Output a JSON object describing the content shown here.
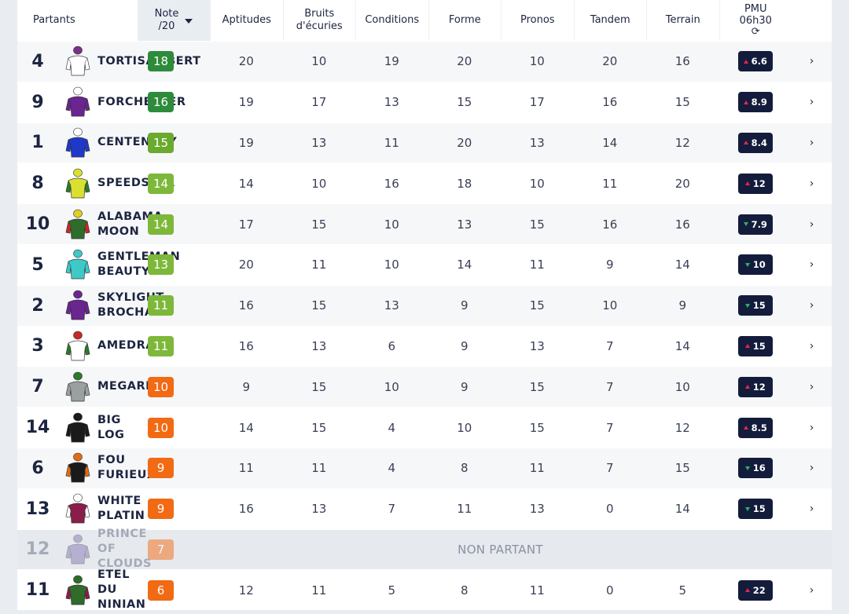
{
  "header": {
    "partants": "Partants",
    "note": "Note\n/20",
    "columns": [
      "Aptitudes",
      "Bruits\nd'écuries",
      "Conditions",
      "Forme",
      "Pronos",
      "Tandem",
      "Terrain"
    ],
    "pmu": "PMU\n06h30",
    "refresh_icon": "refresh-icon"
  },
  "colors": {
    "note_dark_green": "#2e8b3b",
    "note_green": "#6aaa2e",
    "note_light_green": "#7db83a",
    "note_orange": "#f26a14",
    "pmu_bg": "#141c3c",
    "trend_up": "#e4264e",
    "trend_down": "#27b46a"
  },
  "runners": [
    {
      "num": "4",
      "name": "TORTISAMBERT",
      "note": "18",
      "note_color": "#2e8b3b",
      "vals": [
        "20",
        "10",
        "19",
        "20",
        "10",
        "20",
        "16"
      ],
      "pmu": "6.6",
      "trend": "up",
      "silk": {
        "body": "#ffffff",
        "cap": "#7a2f8a",
        "sleeves": "#ffffff"
      }
    },
    {
      "num": "9",
      "name": "FORCHESTER",
      "note": "16",
      "note_color": "#2e8b3b",
      "vals": [
        "19",
        "17",
        "13",
        "15",
        "17",
        "16",
        "15"
      ],
      "pmu": "8.9",
      "trend": "up",
      "silk": {
        "body": "#6a2590",
        "cap": "#ffffff",
        "sleeves": "#6a2590"
      }
    },
    {
      "num": "1",
      "name": "CENTENARY",
      "note": "15",
      "note_color": "#6aaa2e",
      "vals": [
        "19",
        "13",
        "11",
        "20",
        "13",
        "14",
        "12"
      ],
      "pmu": "8.4",
      "trend": "up",
      "silk": {
        "body": "#2038c8",
        "cap": "#ffffff",
        "sleeves": "#2038c8"
      }
    },
    {
      "num": "8",
      "name": "SPEEDSTER",
      "note": "14",
      "note_color": "#7db83a",
      "vals": [
        "14",
        "10",
        "16",
        "18",
        "10",
        "11",
        "20"
      ],
      "pmu": "12",
      "trend": "up",
      "silk": {
        "body": "#d9e030",
        "cap": "#d9e030",
        "sleeves": "#2b7a2a"
      }
    },
    {
      "num": "10",
      "name": "ALABAMA\nMOON",
      "note": "14",
      "note_color": "#7db83a",
      "vals": [
        "17",
        "15",
        "10",
        "13",
        "15",
        "16",
        "16"
      ],
      "pmu": "7.9",
      "trend": "down",
      "silk": {
        "body": "#2f6b2b",
        "cap": "#e0d020",
        "sleeves": "#c72828"
      }
    },
    {
      "num": "5",
      "name": "GENTLEMAN\nBEAUTY",
      "note": "13",
      "note_color": "#7db83a",
      "vals": [
        "20",
        "11",
        "10",
        "14",
        "11",
        "9",
        "14"
      ],
      "pmu": "10",
      "trend": "down",
      "silk": {
        "body": "#3fc8c8",
        "cap": "#3fc8c8",
        "sleeves": "#3fc8c8"
      }
    },
    {
      "num": "2",
      "name": "SKYLIGHT\nBROCHARD",
      "note": "11",
      "note_color": "#7db83a",
      "vals": [
        "16",
        "15",
        "13",
        "9",
        "15",
        "10",
        "9"
      ],
      "pmu": "15",
      "trend": "down",
      "silk": {
        "body": "#6a2590",
        "cap": "#6a2590",
        "sleeves": "#6a2590"
      }
    },
    {
      "num": "3",
      "name": "AMEDRAS",
      "note": "11",
      "note_color": "#7db83a",
      "vals": [
        "16",
        "13",
        "6",
        "9",
        "13",
        "7",
        "14"
      ],
      "pmu": "15",
      "trend": "up",
      "silk": {
        "body": "#ffffff",
        "cap": "#c72828",
        "sleeves": "#2b7a2a"
      }
    },
    {
      "num": "7",
      "name": "MEGARRY",
      "note": "10",
      "note_color": "#f26a14",
      "vals": [
        "9",
        "15",
        "10",
        "9",
        "15",
        "7",
        "10"
      ],
      "pmu": "12",
      "trend": "up",
      "silk": {
        "body": "#9aa0a0",
        "cap": "#2b7a2a",
        "sleeves": "#9aa0a0"
      }
    },
    {
      "num": "14",
      "name": "BIG\nLOG",
      "note": "10",
      "note_color": "#f26a14",
      "vals": [
        "14",
        "15",
        "4",
        "10",
        "15",
        "7",
        "12"
      ],
      "pmu": "8.5",
      "trend": "up",
      "silk": {
        "body": "#1a1a1a",
        "cap": "#1a1a1a",
        "sleeves": "#1a1a1a"
      }
    },
    {
      "num": "6",
      "name": "FOU\nFURIEUX",
      "note": "9",
      "note_color": "#f26a14",
      "vals": [
        "11",
        "11",
        "4",
        "8",
        "11",
        "7",
        "15"
      ],
      "pmu": "16",
      "trend": "down",
      "silk": {
        "body": "#1a1a1a",
        "cap": "#e46a14",
        "sleeves": "#e46a14"
      }
    },
    {
      "num": "13",
      "name": "WHITE\nPLATIN",
      "note": "9",
      "note_color": "#f26a14",
      "vals": [
        "16",
        "13",
        "7",
        "11",
        "13",
        "0",
        "14"
      ],
      "pmu": "15",
      "trend": "down",
      "silk": {
        "body": "#8a1d4a",
        "cap": "#ffffff",
        "sleeves": "#ffffff"
      }
    },
    {
      "num": "12",
      "name": "PRINCE\nOF\nCLOUDS",
      "note": "7",
      "note_color": "#f26a14",
      "nonrunner": true,
      "nonrunner_text": "NON PARTANT",
      "silk": {
        "body": "#7a6ab0",
        "cap": "#7a6ab0",
        "sleeves": "#7a6ab0"
      }
    },
    {
      "num": "11",
      "name": "ETEL\nDU\nNINIAN",
      "note": "6",
      "note_color": "#f26a14",
      "vals": [
        "12",
        "11",
        "5",
        "8",
        "11",
        "0",
        "5"
      ],
      "pmu": "22",
      "trend": "up",
      "silk": {
        "body": "#2f6b2b",
        "cap": "#2f6b2b",
        "sleeves": "#8a1d4a"
      }
    }
  ]
}
